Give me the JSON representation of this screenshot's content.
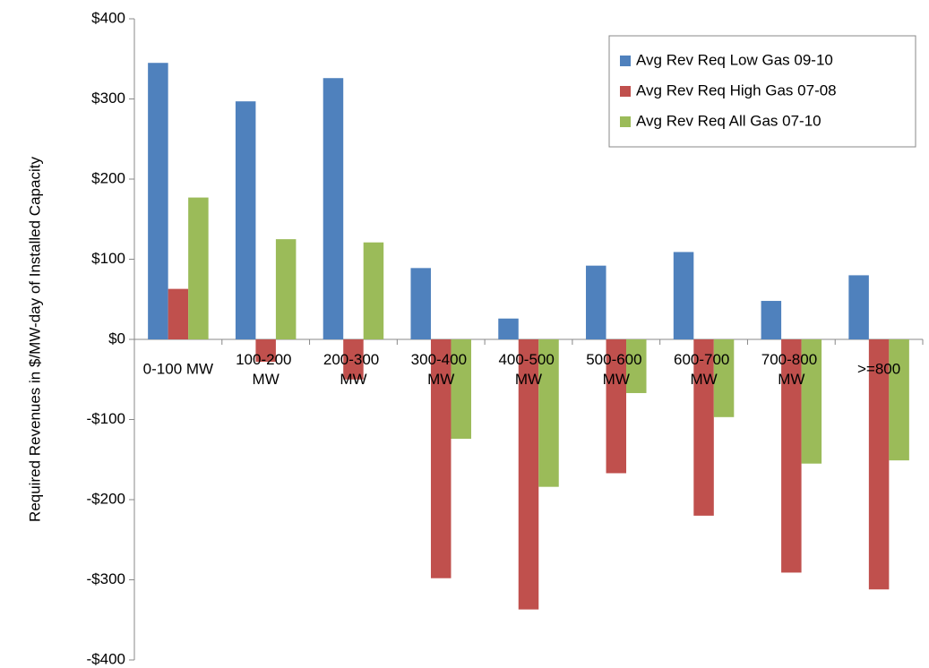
{
  "chart_data": {
    "type": "bar",
    "y_label": "Required Revenues in $/MW-day of Installed Capacity",
    "categories": [
      "0-100 MW",
      "100-200 MW",
      "200-300 MW",
      "300-400 MW",
      "400-500 MW",
      "500-600 MW",
      "600-700 MW",
      "700-800 MW",
      ">=800"
    ],
    "series": [
      {
        "name": "Avg Rev Req Low Gas 09-10",
        "color": "#4f81bd",
        "values": [
          345,
          297,
          326,
          89,
          26,
          92,
          109,
          48,
          80
        ]
      },
      {
        "name": "Avg Rev Req High Gas 07-08",
        "color": "#c0504d",
        "values": [
          63,
          -28,
          -50,
          -298,
          -337,
          -167,
          -220,
          -291,
          -312
        ]
      },
      {
        "name": "Avg Rev Req All Gas 07-10",
        "color": "#9bbb59",
        "values": [
          177,
          125,
          121,
          -124,
          -184,
          -67,
          -97,
          -155,
          -151
        ]
      }
    ],
    "ylim": [
      -400,
      400
    ],
    "yticks": [
      {
        "value": -400,
        "label": "-$400"
      },
      {
        "value": -300,
        "label": "-$300"
      },
      {
        "value": -200,
        "label": "-$200"
      },
      {
        "value": -100,
        "label": "-$100"
      },
      {
        "value": 0,
        "label": "$0"
      },
      {
        "value": 100,
        "label": "$100"
      },
      {
        "value": 200,
        "label": "$200"
      },
      {
        "value": 300,
        "label": "$300"
      },
      {
        "value": 400,
        "label": "$400"
      }
    ],
    "legend": "top-right"
  }
}
